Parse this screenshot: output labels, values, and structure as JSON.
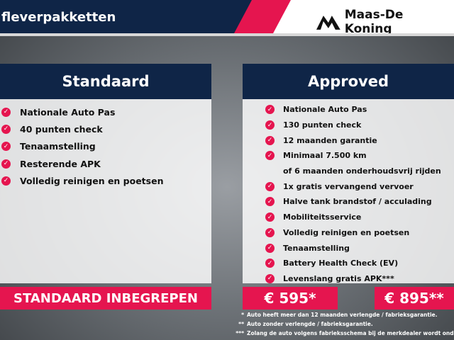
{
  "header": {
    "title": "fleverpakketten",
    "brand": "Maas-De Koning"
  },
  "colors": {
    "navy": "#0f2547",
    "pink": "#e5154f"
  },
  "standaard": {
    "title": "Standaard",
    "items": [
      "Nationale Auto Pas",
      "40 punten check",
      "Tenaamstelling",
      "Resterende APK",
      "Volledig reinigen en poetsen"
    ],
    "price": "STANDAARD INBEGREPEN"
  },
  "approved": {
    "title": "Approved",
    "items": [
      "Nationale Auto Pas",
      "130 punten check",
      "12 maanden garantie",
      "Minimaal 7.500 km",
      "of 6 maanden onderhoudsvrij rijden",
      "1x gratis vervangend vervoer",
      "Halve tank brandstof / acculading",
      "Mobiliteitsservice",
      "Volledig reinigen en poetsen",
      "Tenaamstelling",
      "Battery Health Check (EV)",
      "Levenslang gratis APK***"
    ],
    "price1": "€ 595*",
    "price2": "€ 895**"
  },
  "notes": [
    {
      "mark": "*",
      "text": "Auto heeft meer dan 12 maanden verlengde / fabrieksgarantie."
    },
    {
      "mark": "**",
      "text": "Auto zonder verlengde / fabrieksgarantie."
    },
    {
      "mark": "***",
      "text": "Zolang de auto volgens fabrieksschema bij de merkdealer wordt onderhoud"
    }
  ]
}
